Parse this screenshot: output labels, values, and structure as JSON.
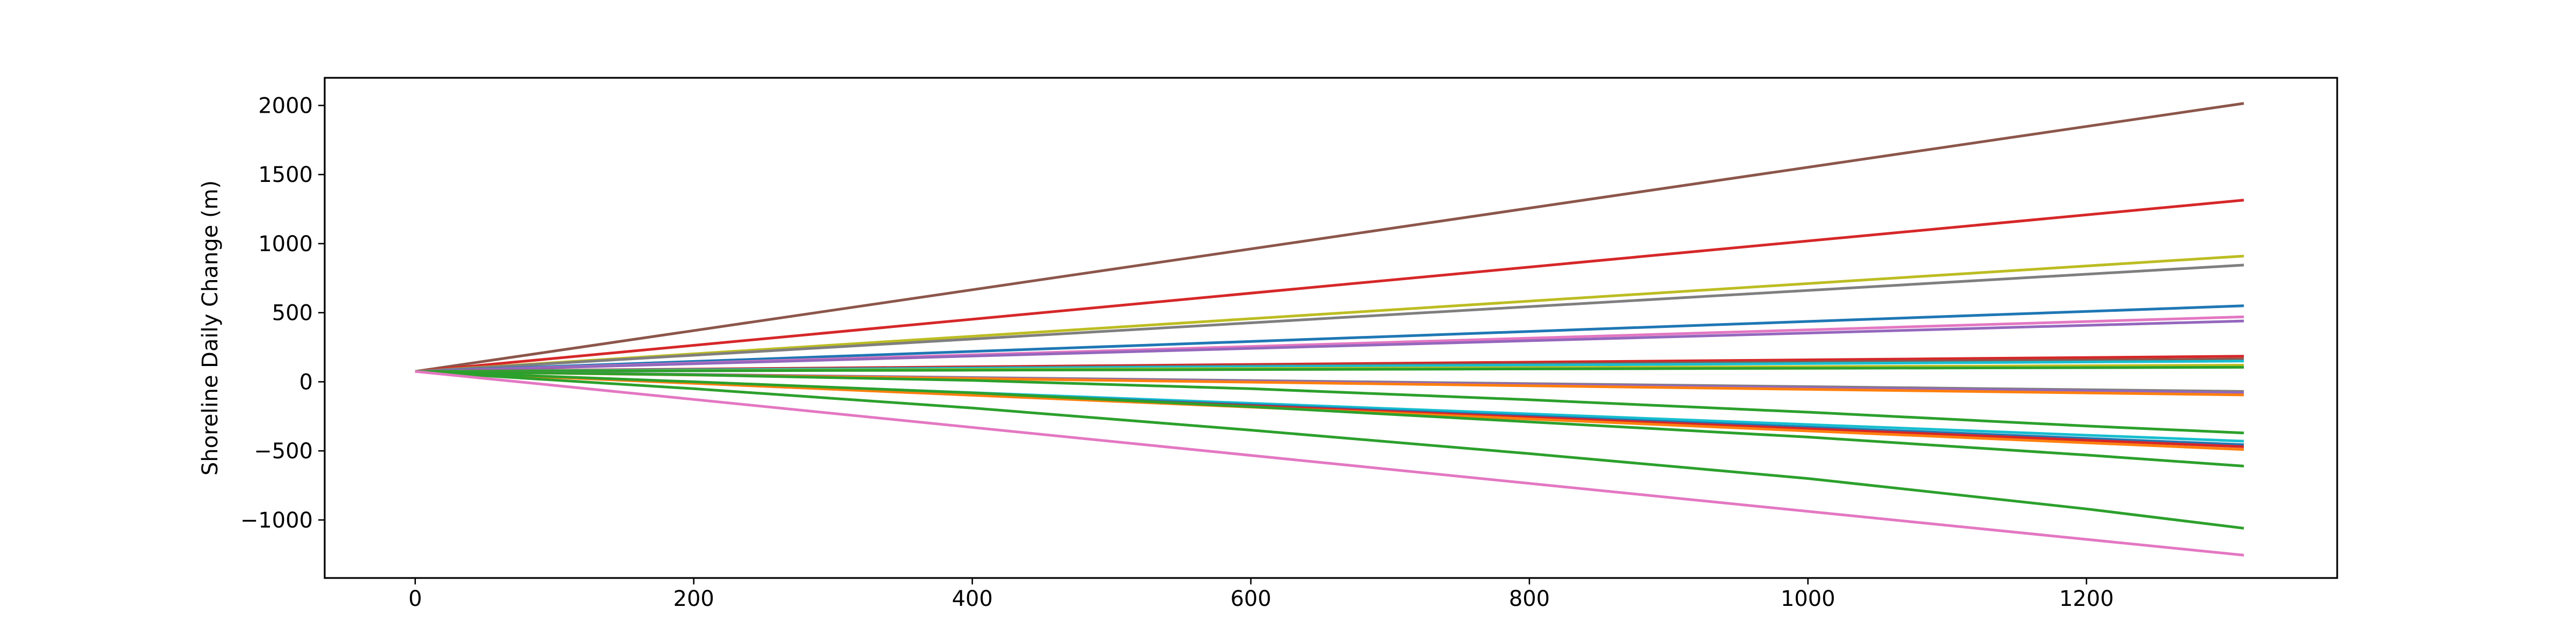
{
  "chart_data": {
    "type": "line",
    "title": "",
    "xlabel": "",
    "ylabel": "Shoreline Daily Change (m)",
    "xlim": [
      -65,
      1380
    ],
    "ylim": [
      -1420,
      2200
    ],
    "xticks": [
      0,
      200,
      400,
      600,
      800,
      1000,
      1200
    ],
    "yticks": [
      -1000,
      -500,
      0,
      500,
      1000,
      1500,
      2000
    ],
    "ytick_labels": [
      "−1000",
      "−500",
      "0",
      "500",
      "1000",
      "1500",
      "2000"
    ],
    "grid": false,
    "legend": "none",
    "series": [
      {
        "color": "#8c564b",
        "x": [
          0,
          1313
        ],
        "y": [
          75,
          2015
        ]
      },
      {
        "color": "#d62728",
        "x": [
          0,
          1313
        ],
        "y": [
          75,
          1315
        ]
      },
      {
        "color": "#bcbd22",
        "x": [
          0,
          1313
        ],
        "y": [
          75,
          910
        ]
      },
      {
        "color": "#7f7f7f",
        "x": [
          0,
          1313
        ],
        "y": [
          75,
          845
        ]
      },
      {
        "color": "#1f77b4",
        "x": [
          0,
          1313
        ],
        "y": [
          75,
          550
        ]
      },
      {
        "color": "#e377c2",
        "x": [
          0,
          1313
        ],
        "y": [
          75,
          470
        ]
      },
      {
        "color": "#9467bd",
        "x": [
          0,
          1313
        ],
        "y": [
          75,
          440
        ]
      },
      {
        "color": "#d62728",
        "x": [
          0,
          1313
        ],
        "y": [
          75,
          185
        ]
      },
      {
        "color": "#8c564b",
        "x": [
          0,
          1313
        ],
        "y": [
          75,
          165
        ]
      },
      {
        "color": "#17becf",
        "x": [
          0,
          1313
        ],
        "y": [
          75,
          150
        ]
      },
      {
        "color": "#bcbd22",
        "x": [
          0,
          1313
        ],
        "y": [
          75,
          120
        ]
      },
      {
        "color": "#2ca02c",
        "x": [
          0,
          1313
        ],
        "y": [
          75,
          105
        ]
      },
      {
        "color": "#7f7f7f",
        "x": [
          0,
          1313
        ],
        "y": [
          75,
          -70
        ]
      },
      {
        "color": "#9467bd",
        "x": [
          0,
          1313
        ],
        "y": [
          75,
          -80
        ]
      },
      {
        "color": "#ff7f0e",
        "x": [
          0,
          1313
        ],
        "y": [
          75,
          -95
        ]
      },
      {
        "color": "#2ca02c",
        "x": [
          0,
          200,
          400,
          600,
          800,
          1000,
          1200,
          1313
        ],
        "y": [
          75,
          50,
          10,
          -50,
          -130,
          -220,
          -320,
          -370
        ]
      },
      {
        "color": "#17becf",
        "x": [
          0,
          1313
        ],
        "y": [
          75,
          -430
        ]
      },
      {
        "color": "#1f77b4",
        "x": [
          0,
          1313
        ],
        "y": [
          75,
          -455
        ]
      },
      {
        "color": "#d62728",
        "x": [
          0,
          1313
        ],
        "y": [
          75,
          -470
        ]
      },
      {
        "color": "#ff7f0e",
        "x": [
          0,
          1313
        ],
        "y": [
          75,
          -490
        ]
      },
      {
        "color": "#2ca02c",
        "x": [
          0,
          200,
          400,
          600,
          800,
          1000,
          1200,
          1313
        ],
        "y": [
          75,
          0,
          -80,
          -180,
          -290,
          -400,
          -530,
          -610
        ]
      },
      {
        "color": "#2ca02c",
        "x": [
          0,
          200,
          400,
          600,
          800,
          1000,
          1200,
          1313
        ],
        "y": [
          75,
          -50,
          -190,
          -350,
          -520,
          -700,
          -920,
          -1060
        ]
      },
      {
        "color": "#e377c2",
        "x": [
          0,
          1313
        ],
        "y": [
          75,
          -1255
        ]
      }
    ]
  }
}
